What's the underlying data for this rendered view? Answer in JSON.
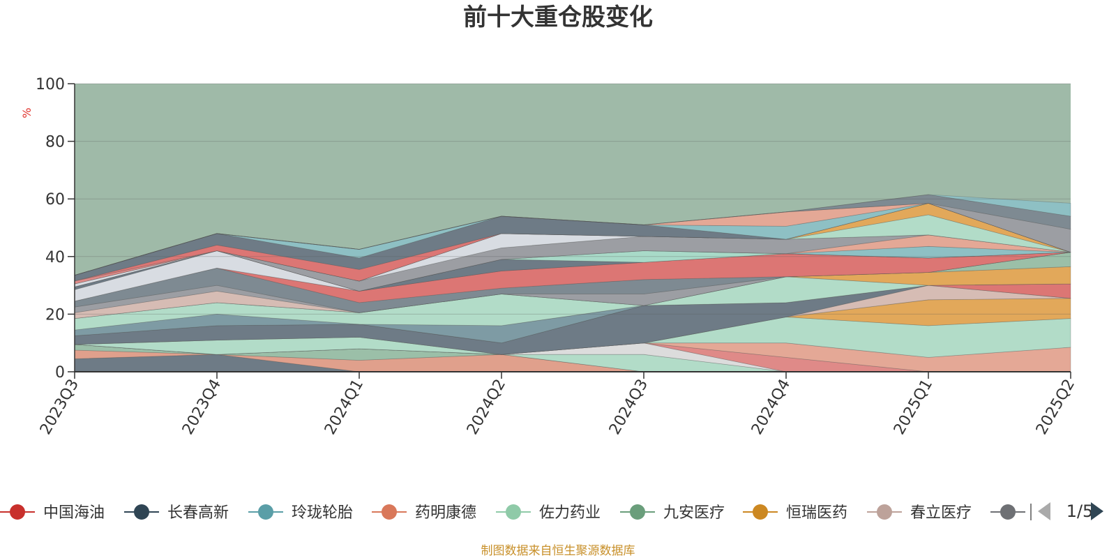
{
  "chart_data": {
    "type": "area",
    "title": "前十大重仓股变化",
    "ylabel": "%",
    "ylim": [
      0,
      100
    ],
    "yticks": [
      0,
      20,
      40,
      60,
      80,
      100
    ],
    "categories": [
      "2023Q3",
      "2023Q4",
      "2024Q1",
      "2024Q2",
      "2024Q3",
      "2024Q4",
      "2025Q1",
      "2025Q2"
    ],
    "grid": true,
    "legend": {
      "placement": "bottom",
      "page": "1/5",
      "visible_items": [
        {
          "name": "中国海油",
          "color": "#c8302c"
        },
        {
          "name": "长春高新",
          "color": "#2f4554"
        },
        {
          "name": "玲珑轮胎",
          "color": "#5a9ea7"
        },
        {
          "name": "药明康德",
          "color": "#d9785a"
        },
        {
          "name": "佐力药业",
          "color": "#8fcaa8"
        },
        {
          "name": "九安医疗",
          "color": "#6a9e7b"
        },
        {
          "name": "恒瑞医药",
          "color": "#cc8822"
        },
        {
          "name": "春立医疗",
          "color": "#bda29a"
        },
        {
          "name": "",
          "color": "#6e7074"
        }
      ]
    },
    "series": [
      {
        "color": "#6e7b86",
        "values": [
          4.5,
          6,
          0,
          0,
          0,
          0,
          0,
          0
        ]
      },
      {
        "color": "#e0a08c",
        "values": [
          3,
          0,
          4,
          6,
          0,
          0,
          0,
          0
        ]
      },
      {
        "color": "#9bbfa8",
        "values": [
          2,
          0,
          4,
          0,
          0,
          0,
          0,
          0
        ]
      },
      {
        "color": "#b2dcc8",
        "values": [
          0,
          0,
          0,
          0,
          6,
          0,
          0,
          0
        ]
      },
      {
        "color": "#dcdcdc",
        "values": [
          0,
          0,
          0,
          0,
          4,
          0,
          0,
          0
        ]
      },
      {
        "color": "#df8a88",
        "values": [
          0,
          0,
          0,
          0,
          0,
          5,
          0,
          0
        ]
      },
      {
        "color": "#e4a896",
        "values": [
          0,
          0,
          0,
          0,
          0,
          5,
          5,
          8.5
        ]
      },
      {
        "color": "#b2dcc8",
        "values": [
          0,
          5,
          4,
          0,
          0,
          9,
          11,
          10
        ]
      },
      {
        "color": "#e2a85a",
        "values": [
          0,
          0,
          0,
          0,
          0,
          0,
          9,
          7
        ]
      },
      {
        "color": "#d6bcb4",
        "values": [
          0,
          0,
          0,
          0,
          0,
          0,
          5,
          0
        ]
      },
      {
        "color": "#6e7b86",
        "values": [
          3,
          5,
          4.5,
          4,
          13,
          5,
          0,
          0
        ]
      },
      {
        "color": "#dc7674",
        "values": [
          0,
          0,
          0,
          0,
          0,
          0,
          0,
          5
        ]
      },
      {
        "color": "#7e9ba4",
        "values": [
          2,
          4,
          0,
          6,
          0,
          0,
          0,
          0
        ]
      },
      {
        "color": "#b2dcc8",
        "values": [
          4,
          4,
          4,
          11,
          0,
          9,
          0,
          0
        ]
      },
      {
        "color": "#e2a85a",
        "values": [
          0,
          0,
          0,
          0,
          0,
          0,
          4.5,
          6
        ]
      },
      {
        "color": "#9bbfa8",
        "values": [
          0,
          0,
          0,
          0,
          0,
          0,
          0,
          5
        ]
      },
      {
        "color": "#d6bcb4",
        "values": [
          2,
          4,
          0,
          0,
          0,
          0,
          0,
          0
        ]
      },
      {
        "color": "#9c9ea3",
        "values": [
          2,
          2,
          0,
          0,
          4,
          0,
          0,
          0
        ]
      },
      {
        "color": "#7e8a92",
        "values": [
          2,
          6,
          3.5,
          2,
          5,
          0,
          0,
          0
        ]
      },
      {
        "color": "#dc7674",
        "values": [
          0,
          0,
          4,
          6,
          6,
          8,
          5,
          0
        ]
      },
      {
        "color": "#d8dce2",
        "values": [
          4,
          6,
          0,
          0,
          0,
          0,
          0,
          0
        ]
      },
      {
        "color": "#6e7b86",
        "values": [
          1,
          0,
          0,
          4,
          0,
          0,
          0,
          0
        ]
      },
      {
        "color": "#a8dac8",
        "values": [
          0,
          0,
          0,
          0,
          4,
          0,
          0,
          0
        ]
      },
      {
        "color": "#8ec0c4",
        "values": [
          0,
          0,
          0,
          0,
          0,
          0,
          4,
          0
        ]
      },
      {
        "color": "#e4a896",
        "values": [
          0,
          0,
          0,
          0,
          0,
          0,
          4,
          0
        ]
      },
      {
        "color": "#9c9ea3",
        "values": [
          0,
          0,
          3.5,
          4,
          5,
          5,
          0,
          0
        ]
      },
      {
        "color": "#d8dce2",
        "values": [
          1,
          0,
          0,
          5,
          0,
          0,
          0,
          0
        ]
      },
      {
        "color": "#b2dcc8",
        "values": [
          0,
          0,
          0,
          0,
          0,
          0,
          7,
          0
        ]
      },
      {
        "color": "#e2a85a",
        "values": [
          0,
          0,
          0,
          0,
          0,
          0,
          4,
          0
        ]
      },
      {
        "color": "#df8a88",
        "values": [
          1,
          0,
          0,
          0,
          0,
          0,
          0,
          0
        ]
      },
      {
        "color": "#dc7674",
        "values": [
          0,
          2,
          4,
          0,
          0,
          0,
          0,
          0
        ]
      },
      {
        "color": "#6e7b86",
        "values": [
          2,
          4,
          4,
          6,
          4,
          0,
          0,
          0
        ]
      },
      {
        "color": "#8ec0c4",
        "values": [
          0,
          0,
          3,
          0,
          0,
          4.5,
          0,
          0
        ]
      },
      {
        "color": "#e4a896",
        "values": [
          0,
          0,
          0,
          0,
          0,
          5,
          0,
          0
        ]
      },
      {
        "color": "#9c9ea3",
        "values": [
          0,
          0,
          0,
          0,
          0,
          0,
          0,
          8
        ]
      },
      {
        "color": "#7e8a92",
        "values": [
          0,
          0,
          0,
          0,
          0,
          0,
          3,
          4.5
        ]
      },
      {
        "color": "#8ec0c4",
        "values": [
          0,
          0,
          0,
          0,
          0,
          0,
          0,
          4.5
        ]
      }
    ],
    "background_area_color": "#9fbaa8"
  },
  "footer": {
    "source": "制图数据来自恒生聚源数据库"
  }
}
